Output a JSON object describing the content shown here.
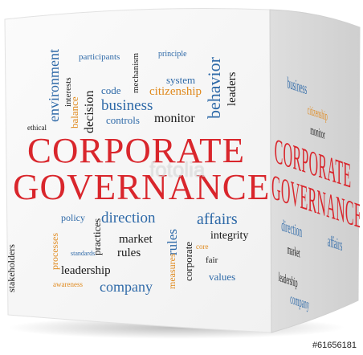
{
  "front": {
    "title_line1": "CORPORATE",
    "title_line2": "GOVERNANCE",
    "words_top": {
      "participants": "participants",
      "principle": "principle",
      "environment": "environment",
      "interests": "interests",
      "ethical": "ethical",
      "balance": "balance",
      "decision": "decision",
      "code": "code",
      "mechanism": "mechanism",
      "system": "system",
      "citizenship": "citizenship",
      "business": "business",
      "behavior": "behavior",
      "leaders": "leaders",
      "controls": "controls",
      "monitor": "monitor"
    },
    "words_bottom": {
      "stakeholders": "stakeholders",
      "processes": "processes",
      "policy": "policy",
      "direction": "direction",
      "affairs": "affairs",
      "standards": "standards",
      "practices": "practices",
      "market": "market",
      "rules": "rules",
      "integrity": "integrity",
      "corporate": "corporate",
      "core": "core",
      "measures": "measures",
      "fair": "fair",
      "leadership": "leadership",
      "values": "values",
      "awareness": "awareness",
      "company": "company"
    }
  },
  "side": {
    "title_line1": "CORPORATE",
    "title_line2": "GOVERNANCE"
  },
  "watermark": "fotolia",
  "credit": "#61656181",
  "colors": {
    "red": "#d9262c",
    "blue": "#2f6aa8",
    "orange": "#e08a1e",
    "dark": "#1a1a1a"
  }
}
